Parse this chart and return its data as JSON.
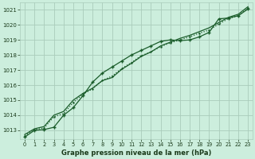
{
  "title": "Graphe pression niveau de la mer (hPa)",
  "background_color": "#cceedd",
  "grid_color": "#aaccbb",
  "line_color": "#1a5c2a",
  "xlim": [
    -0.5,
    23.5
  ],
  "ylim": [
    1012.4,
    1021.5
  ],
  "yticks": [
    1013,
    1014,
    1015,
    1016,
    1017,
    1018,
    1019,
    1020,
    1021
  ],
  "xticks": [
    0,
    1,
    2,
    3,
    4,
    5,
    6,
    7,
    8,
    9,
    10,
    11,
    12,
    13,
    14,
    15,
    16,
    17,
    18,
    19,
    20,
    21,
    22,
    23
  ],
  "series_top": [
    1012.55,
    1013.0,
    1013.05,
    1013.2,
    1014.0,
    1014.5,
    1015.3,
    1016.2,
    1016.8,
    1017.2,
    1017.6,
    1018.0,
    1018.3,
    1018.6,
    1018.9,
    1019.0,
    1018.95,
    1019.0,
    1019.2,
    1019.5,
    1020.4,
    1020.45,
    1020.6,
    1021.05
  ],
  "series_mid": [
    1012.65,
    1013.05,
    1013.15,
    1013.9,
    1014.1,
    1014.85,
    1015.4,
    1015.75,
    1016.3,
    1016.6,
    1017.1,
    1017.5,
    1017.95,
    1018.2,
    1018.55,
    1018.8,
    1019.0,
    1019.2,
    1019.45,
    1019.65,
    1020.05,
    1020.42,
    1020.6,
    1021.1
  ],
  "series_bot": [
    1012.72,
    1013.1,
    1013.25,
    1014.0,
    1014.25,
    1015.0,
    1015.45,
    1015.8,
    1016.3,
    1016.5,
    1017.05,
    1017.45,
    1017.9,
    1018.2,
    1018.6,
    1018.85,
    1019.1,
    1019.3,
    1019.55,
    1019.8,
    1020.15,
    1020.5,
    1020.7,
    1021.2
  ]
}
